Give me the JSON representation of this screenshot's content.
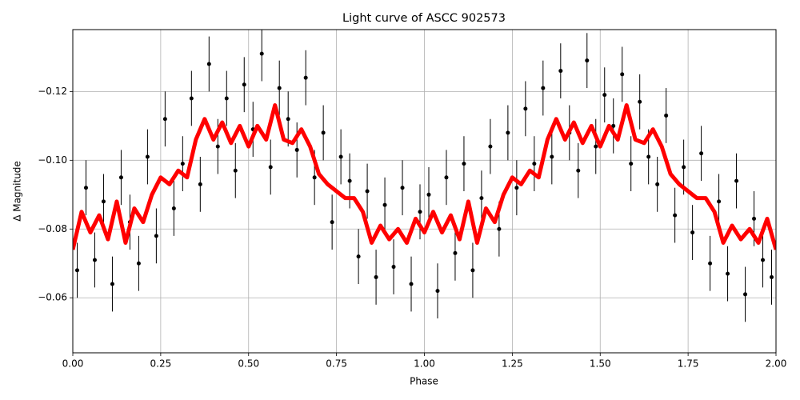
{
  "chart_data": {
    "type": "scatter",
    "title": "Light curve of ASCC 902573",
    "x_label": "Phase",
    "y_label": "Δ Magnitude",
    "xlim": [
      0,
      2
    ],
    "ylim": [
      -0.138,
      -0.044
    ],
    "y_inverted": true,
    "grid": true,
    "xticks": [
      {
        "value": 0,
        "label": "0.00"
      },
      0.25,
      {
        "value": 0.5,
        "label": "0.50"
      },
      0.75,
      {
        "value": 1,
        "label": "1.00"
      },
      1.25,
      {
        "value": 1.5,
        "label": "1.50"
      },
      1.75,
      {
        "value": 2,
        "label": "2.00"
      }
    ],
    "yticks": [
      {
        "value": -0.06,
        "label": "−0.06"
      },
      {
        "value": -0.08,
        "label": "−0.08"
      },
      {
        "value": -0.1,
        "label": "−0.10"
      },
      {
        "value": -0.12,
        "label": "−0.12"
      }
    ],
    "series": [
      {
        "kind": "errorbar",
        "color": "#000000",
        "yerr": 0.008,
        "x": [
          0.0125,
          0.0375,
          0.0625,
          0.0875,
          0.1125,
          0.1375,
          0.1625,
          0.1875,
          0.2125,
          0.2375,
          0.2625,
          0.2875,
          0.3125,
          0.3375,
          0.3625,
          0.3875,
          0.4125,
          0.4375,
          0.4625,
          0.4875,
          0.5125,
          0.5375,
          0.5625,
          0.5875,
          0.6125,
          0.6375,
          0.6625,
          0.6875,
          0.7125,
          0.7375,
          0.7625,
          0.7875,
          0.8125,
          0.8375,
          0.8625,
          0.8875,
          0.9125,
          0.9375,
          0.9625,
          0.9875,
          1.0125,
          1.0375,
          1.0625,
          1.0875,
          1.1125,
          1.1375,
          1.1625,
          1.1875,
          1.2125,
          1.2375,
          1.2625,
          1.2875,
          1.3125,
          1.3375,
          1.3625,
          1.3875,
          1.4125,
          1.4375,
          1.4625,
          1.4875,
          1.5125,
          1.5375,
          1.5625,
          1.5875,
          1.6125,
          1.6375,
          1.6625,
          1.6875,
          1.7125,
          1.7375,
          1.7625,
          1.7875,
          1.8125,
          1.8375,
          1.8625,
          1.8875,
          1.9125,
          1.9375,
          1.9625,
          1.9875
        ],
        "values": [
          -0.068,
          -0.092,
          -0.071,
          -0.088,
          -0.064,
          -0.095,
          -0.082,
          -0.07,
          -0.101,
          -0.078,
          -0.112,
          -0.086,
          -0.099,
          -0.118,
          -0.093,
          -0.128,
          -0.104,
          -0.118,
          -0.097,
          -0.122,
          -0.109,
          -0.131,
          -0.098,
          -0.121,
          -0.112,
          -0.103,
          -0.124,
          -0.095,
          -0.108,
          -0.082,
          -0.101,
          -0.094,
          -0.072,
          -0.091,
          -0.066,
          -0.087,
          -0.069,
          -0.092,
          -0.064,
          -0.085,
          -0.09,
          -0.062,
          -0.095,
          -0.073,
          -0.099,
          -0.068,
          -0.089,
          -0.104,
          -0.08,
          -0.108,
          -0.092,
          -0.115,
          -0.099,
          -0.121,
          -0.101,
          -0.126,
          -0.108,
          -0.097,
          -0.129,
          -0.104,
          -0.119,
          -0.11,
          -0.125,
          -0.099,
          -0.117,
          -0.101,
          -0.093,
          -0.113,
          -0.084,
          -0.098,
          -0.079,
          -0.102,
          -0.07,
          -0.088,
          -0.067,
          -0.094,
          -0.061,
          -0.083,
          -0.071,
          -0.066
        ]
      },
      {
        "kind": "line",
        "color": "#ff0000",
        "x": [
          0,
          0.025,
          0.05,
          0.075,
          0.1,
          0.125,
          0.15,
          0.175,
          0.2,
          0.225,
          0.25,
          0.275,
          0.3,
          0.325,
          0.35,
          0.375,
          0.4,
          0.425,
          0.45,
          0.475,
          0.5,
          0.525,
          0.55,
          0.575,
          0.6,
          0.625,
          0.65,
          0.675,
          0.7,
          0.725,
          0.75,
          0.775,
          0.8,
          0.825,
          0.85,
          0.875,
          0.9,
          0.925,
          0.95,
          0.975,
          1,
          1.025,
          1.05,
          1.075,
          1.1,
          1.125,
          1.15,
          1.175,
          1.2,
          1.225,
          1.25,
          1.275,
          1.3,
          1.325,
          1.35,
          1.375,
          1.4,
          1.425,
          1.45,
          1.475,
          1.5,
          1.525,
          1.55,
          1.575,
          1.6,
          1.625,
          1.65,
          1.675,
          1.7,
          1.725,
          1.75,
          1.775,
          1.8,
          1.825,
          1.85,
          1.875,
          1.9,
          1.925,
          1.95,
          1.975,
          2
        ],
        "values": [
          -0.074,
          -0.085,
          -0.079,
          -0.084,
          -0.077,
          -0.088,
          -0.076,
          -0.086,
          -0.082,
          -0.09,
          -0.095,
          -0.093,
          -0.097,
          -0.095,
          -0.106,
          -0.112,
          -0.106,
          -0.111,
          -0.105,
          -0.11,
          -0.104,
          -0.11,
          -0.106,
          -0.116,
          -0.106,
          -0.105,
          -0.109,
          -0.104,
          -0.096,
          -0.093,
          -0.091,
          -0.089,
          -0.089,
          -0.085,
          -0.076,
          -0.081,
          -0.077,
          -0.08,
          -0.076,
          -0.083,
          -0.079,
          -0.085,
          -0.079,
          -0.084,
          -0.077,
          -0.088,
          -0.076,
          -0.086,
          -0.082,
          -0.09,
          -0.095,
          -0.093,
          -0.097,
          -0.095,
          -0.106,
          -0.112,
          -0.106,
          -0.111,
          -0.105,
          -0.11,
          -0.104,
          -0.11,
          -0.106,
          -0.116,
          -0.106,
          -0.105,
          -0.109,
          -0.104,
          -0.096,
          -0.093,
          -0.091,
          -0.089,
          -0.089,
          -0.085,
          -0.076,
          -0.081,
          -0.077,
          -0.08,
          -0.076,
          -0.083,
          -0.074
        ]
      }
    ]
  }
}
